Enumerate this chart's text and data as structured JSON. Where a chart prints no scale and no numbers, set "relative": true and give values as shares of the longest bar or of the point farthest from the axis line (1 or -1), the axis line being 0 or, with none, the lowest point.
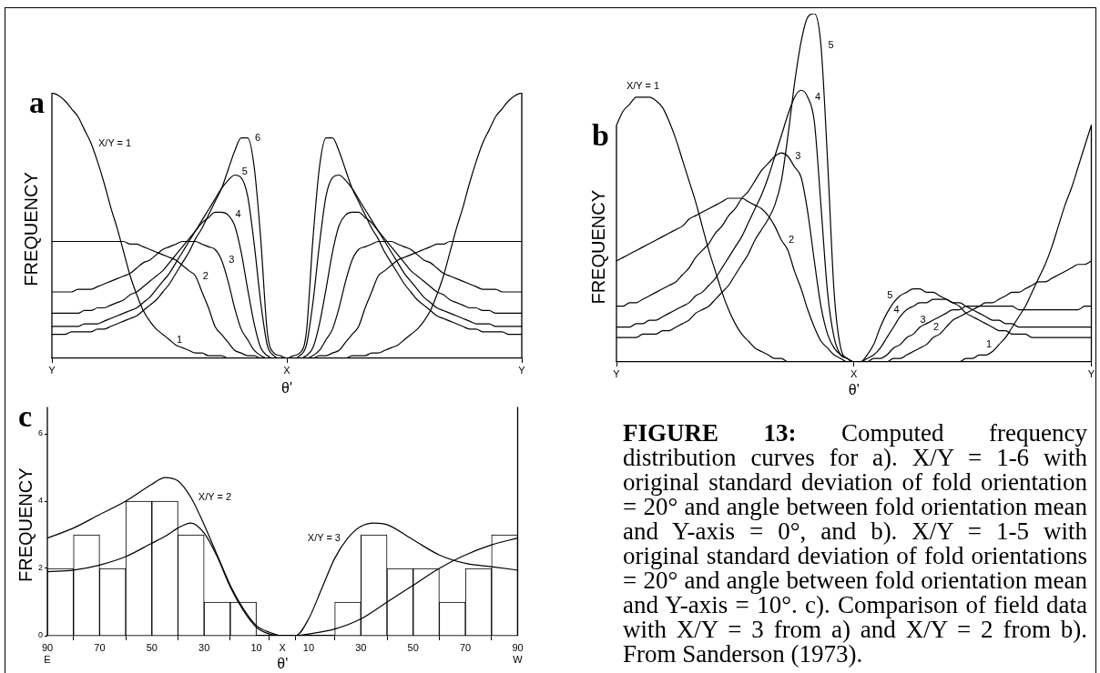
{
  "chart_data": [
    {
      "type": "line",
      "title": "a",
      "xlabel": "θ'",
      "ylabel": "FREQUENCY",
      "relative": true,
      "categories": [
        "Y",
        null,
        null,
        null,
        null,
        null,
        null,
        null,
        null,
        null,
        null,
        null,
        null,
        null,
        null,
        null,
        null,
        null,
        null,
        null,
        null,
        null,
        null,
        null,
        null,
        null,
        null,
        null,
        null,
        null,
        null,
        null,
        null,
        null,
        null,
        null,
        "X",
        null,
        null,
        null,
        null,
        null,
        null,
        null,
        null,
        null,
        null,
        null,
        null,
        null,
        null,
        null,
        null,
        null,
        null,
        null,
        null,
        null,
        null,
        null,
        null,
        null,
        null,
        null,
        null,
        null,
        null,
        null,
        null,
        null,
        null,
        null,
        "Y"
      ],
      "series": [
        {
          "name": "1",
          "color": "#000000",
          "values": [
            1,
            0.99,
            0.97,
            0.94,
            0.91,
            0.86,
            0.81,
            0.74,
            0.66,
            0.57,
            0.49,
            0.4,
            0.31,
            0.24,
            0.18,
            0.14,
            0.11,
            0.09,
            0.07,
            0.05,
            0.04,
            0.03,
            0.02,
            0.02,
            0.01,
            0.01,
            0.01,
            0,
            0,
            0,
            0,
            0,
            0,
            0,
            0,
            0,
            0,
            0,
            0,
            0,
            0,
            0,
            0,
            0,
            0,
            0,
            0.01,
            0.01,
            0.01,
            0.02,
            0.02,
            0.03,
            0.04,
            0.05,
            0.07,
            0.09,
            0.11,
            0.14,
            0.18,
            0.24,
            0.31,
            0.4,
            0.49,
            0.57,
            0.66,
            0.74,
            0.81,
            0.86,
            0.91,
            0.94,
            0.97,
            0.99,
            1
          ]
        },
        {
          "name": "2",
          "color": "#000000",
          "values": [
            0.44,
            0.44,
            0.44,
            0.44,
            0.44,
            0.44,
            0.44,
            0.44,
            0.44,
            0.44,
            0.44,
            0.44,
            0.43,
            0.43,
            0.42,
            0.41,
            0.4,
            0.39,
            0.38,
            0.37,
            0.35,
            0.33,
            0.31,
            0.25,
            0.19,
            0.12,
            0.09,
            0.06,
            0.03,
            0.02,
            0.01,
            0.01,
            0,
            0,
            0,
            0,
            0,
            0,
            0,
            0,
            0,
            0.01,
            0.01,
            0.02,
            0.03,
            0.06,
            0.09,
            0.12,
            0.19,
            0.25,
            0.31,
            0.33,
            0.35,
            0.37,
            0.38,
            0.39,
            0.4,
            0.41,
            0.42,
            0.43,
            0.43,
            0.44,
            0.44,
            0.44,
            0.44,
            0.44,
            0.44,
            0.44,
            0.44,
            0.44,
            0.44,
            0.44,
            0.44
          ]
        },
        {
          "name": "3",
          "color": "#000000",
          "values": [
            0.25,
            0.25,
            0.25,
            0.25,
            0.26,
            0.26,
            0.26,
            0.27,
            0.28,
            0.29,
            0.3,
            0.31,
            0.32,
            0.34,
            0.36,
            0.37,
            0.39,
            0.41,
            0.42,
            0.43,
            0.44,
            0.44,
            0.44,
            0.43,
            0.42,
            0.41,
            0.37,
            0.29,
            0.19,
            0.11,
            0.07,
            0.03,
            0.01,
            0,
            0,
            0,
            0,
            0,
            0,
            0,
            0.01,
            0.03,
            0.07,
            0.11,
            0.19,
            0.29,
            0.37,
            0.41,
            0.42,
            0.43,
            0.44,
            0.44,
            0.44,
            0.43,
            0.42,
            0.41,
            0.39,
            0.37,
            0.36,
            0.34,
            0.32,
            0.31,
            0.3,
            0.29,
            0.28,
            0.27,
            0.26,
            0.26,
            0.26,
            0.25,
            0.25,
            0.25,
            0.25
          ]
        },
        {
          "name": "4",
          "color": "#000000",
          "values": [
            0.17,
            0.17,
            0.17,
            0.17,
            0.17,
            0.18,
            0.18,
            0.19,
            0.19,
            0.2,
            0.21,
            0.22,
            0.24,
            0.25,
            0.27,
            0.29,
            0.31,
            0.33,
            0.36,
            0.39,
            0.42,
            0.45,
            0.48,
            0.51,
            0.53,
            0.55,
            0.55,
            0.54,
            0.5,
            0.4,
            0.26,
            0.13,
            0.04,
            0.01,
            0,
            0,
            0,
            0,
            0,
            0.01,
            0.04,
            0.13,
            0.26,
            0.4,
            0.5,
            0.54,
            0.55,
            0.55,
            0.53,
            0.51,
            0.48,
            0.45,
            0.42,
            0.39,
            0.36,
            0.33,
            0.31,
            0.29,
            0.27,
            0.25,
            0.24,
            0.22,
            0.21,
            0.2,
            0.19,
            0.19,
            0.18,
            0.18,
            0.17,
            0.17,
            0.17,
            0.17,
            0.17
          ]
        },
        {
          "name": "5",
          "color": "#000000",
          "values": [
            0.12,
            0.12,
            0.12,
            0.12,
            0.12,
            0.13,
            0.13,
            0.13,
            0.14,
            0.15,
            0.16,
            0.17,
            0.18,
            0.19,
            0.21,
            0.23,
            0.26,
            0.29,
            0.32,
            0.36,
            0.4,
            0.44,
            0.48,
            0.52,
            0.56,
            0.6,
            0.64,
            0.67,
            0.69,
            0.68,
            0.61,
            0.43,
            0.21,
            0.05,
            0.01,
            0,
            0,
            0,
            0.01,
            0.05,
            0.21,
            0.43,
            0.61,
            0.68,
            0.69,
            0.67,
            0.64,
            0.6,
            0.56,
            0.52,
            0.48,
            0.44,
            0.4,
            0.36,
            0.32,
            0.29,
            0.26,
            0.23,
            0.21,
            0.19,
            0.18,
            0.17,
            0.16,
            0.15,
            0.14,
            0.13,
            0.13,
            0.13,
            0.12,
            0.12,
            0.12,
            0.12,
            0.12
          ]
        },
        {
          "name": "6",
          "color": "#000000",
          "values": [
            0.09,
            0.09,
            0.09,
            0.1,
            0.1,
            0.1,
            0.1,
            0.11,
            0.11,
            0.12,
            0.13,
            0.14,
            0.15,
            0.16,
            0.18,
            0.2,
            0.22,
            0.25,
            0.28,
            0.32,
            0.36,
            0.4,
            0.45,
            0.49,
            0.54,
            0.59,
            0.64,
            0.71,
            0.78,
            0.83,
            0.83,
            0.72,
            0.45,
            0.1,
            0.02,
            0.01,
            0,
            0.01,
            0.02,
            0.1,
            0.45,
            0.72,
            0.83,
            0.83,
            0.78,
            0.71,
            0.64,
            0.59,
            0.54,
            0.49,
            0.45,
            0.4,
            0.36,
            0.32,
            0.28,
            0.25,
            0.22,
            0.2,
            0.18,
            0.16,
            0.15,
            0.14,
            0.13,
            0.12,
            0.11,
            0.11,
            0.1,
            0.1,
            0.1,
            0.1,
            0.09,
            0.09,
            0.09
          ]
        }
      ],
      "annotations": [
        "X/Y = 1"
      ]
    },
    {
      "type": "line",
      "title": "b",
      "xlabel": "θ'",
      "ylabel": "FREQUENCY",
      "relative": true,
      "categories": [
        "Y",
        null,
        null,
        null,
        null,
        null,
        null,
        null,
        null,
        null,
        null,
        null,
        null,
        null,
        null,
        null,
        null,
        null,
        null,
        null,
        null,
        null,
        null,
        null,
        null,
        null,
        null,
        null,
        null,
        null,
        null,
        null,
        null,
        null,
        null,
        null,
        "X",
        null,
        null,
        null,
        null,
        null,
        null,
        null,
        null,
        null,
        null,
        null,
        null,
        null,
        null,
        null,
        null,
        null,
        null,
        null,
        null,
        null,
        null,
        null,
        null,
        null,
        null,
        null,
        null,
        null,
        null,
        null,
        null,
        null,
        null,
        null,
        "Y"
      ],
      "series": [
        {
          "name": "1",
          "color": "#000000",
          "values": [
            0.68,
            0.72,
            0.74,
            0.76,
            0.76,
            0.76,
            0.75,
            0.73,
            0.69,
            0.64,
            0.58,
            0.52,
            0.46,
            0.39,
            0.32,
            0.26,
            0.2,
            0.15,
            0.11,
            0.08,
            0.06,
            0.04,
            0.03,
            0.02,
            0.01,
            0.01,
            0,
            0,
            0,
            0,
            0,
            0,
            0,
            0,
            0,
            0,
            0,
            0,
            0,
            0,
            0,
            0,
            0,
            0,
            0,
            0,
            0,
            0,
            0,
            0,
            0,
            0,
            0,
            0.01,
            0.01,
            0.02,
            0.02,
            0.03,
            0.05,
            0.07,
            0.1,
            0.13,
            0.16,
            0.2,
            0.24,
            0.28,
            0.33,
            0.39,
            0.45,
            0.5,
            0.56,
            0.62,
            0.68
          ]
        },
        {
          "name": "2",
          "color": "#000000",
          "values": [
            0.29,
            0.3,
            0.31,
            0.32,
            0.33,
            0.34,
            0.35,
            0.36,
            0.37,
            0.38,
            0.39,
            0.41,
            0.42,
            0.43,
            0.44,
            0.45,
            0.46,
            0.47,
            0.47,
            0.47,
            0.46,
            0.45,
            0.44,
            0.42,
            0.39,
            0.35,
            0.32,
            0.26,
            0.21,
            0.15,
            0.1,
            0.06,
            0.04,
            0.02,
            0.01,
            0,
            0,
            0,
            0,
            0,
            0,
            0,
            0.01,
            0.01,
            0.02,
            0.03,
            0.04,
            0.05,
            0.07,
            0.08,
            0.1,
            0.12,
            0.13,
            0.14,
            0.15,
            0.16,
            0.17,
            0.17,
            0.18,
            0.19,
            0.2,
            0.2,
            0.21,
            0.22,
            0.23,
            0.23,
            0.24,
            0.25,
            0.26,
            0.27,
            0.28,
            0.28,
            0.29
          ]
        },
        {
          "name": "3",
          "color": "#000000",
          "values": [
            0.16,
            0.16,
            0.17,
            0.17,
            0.18,
            0.19,
            0.2,
            0.21,
            0.22,
            0.23,
            0.25,
            0.27,
            0.3,
            0.32,
            0.34,
            0.37,
            0.39,
            0.42,
            0.44,
            0.47,
            0.49,
            0.52,
            0.55,
            0.57,
            0.59,
            0.6,
            0.59,
            0.56,
            0.53,
            0.43,
            0.29,
            0.16,
            0.08,
            0.04,
            0.02,
            0.01,
            0,
            0,
            0,
            0.01,
            0.01,
            0.02,
            0.04,
            0.05,
            0.07,
            0.08,
            0.1,
            0.11,
            0.12,
            0.13,
            0.14,
            0.15,
            0.15,
            0.16,
            0.16,
            0.16,
            0.16,
            0.16,
            0.16,
            0.16,
            0.16,
            0.15,
            0.15,
            0.15,
            0.15,
            0.15,
            0.15,
            0.15,
            0.15,
            0.15,
            0.15,
            0.16,
            0.16
          ]
        },
        {
          "name": "4",
          "color": "#000000",
          "values": [
            0.1,
            0.1,
            0.1,
            0.11,
            0.11,
            0.12,
            0.12,
            0.13,
            0.14,
            0.15,
            0.16,
            0.17,
            0.19,
            0.2,
            0.22,
            0.24,
            0.27,
            0.3,
            0.33,
            0.36,
            0.4,
            0.44,
            0.48,
            0.53,
            0.59,
            0.65,
            0.71,
            0.76,
            0.78,
            0.76,
            0.69,
            0.45,
            0.2,
            0.07,
            0.02,
            0.01,
            0,
            0,
            0.01,
            0.02,
            0.04,
            0.07,
            0.1,
            0.13,
            0.15,
            0.16,
            0.17,
            0.17,
            0.18,
            0.18,
            0.18,
            0.17,
            0.17,
            0.16,
            0.15,
            0.14,
            0.13,
            0.12,
            0.12,
            0.11,
            0.11,
            0.1,
            0.1,
            0.1,
            0.1,
            0.1,
            0.1,
            0.1,
            0.1,
            0.1,
            0.1,
            0.1,
            0.1
          ]
        },
        {
          "name": "5",
          "color": "#000000",
          "values": [
            0.07,
            0.07,
            0.07,
            0.07,
            0.08,
            0.08,
            0.08,
            0.09,
            0.09,
            0.1,
            0.11,
            0.12,
            0.14,
            0.15,
            0.16,
            0.18,
            0.2,
            0.22,
            0.25,
            0.28,
            0.31,
            0.35,
            0.38,
            0.41,
            0.45,
            0.52,
            0.65,
            0.8,
            0.92,
            0.99,
            1,
            0.91,
            0.58,
            0.2,
            0.04,
            0.01,
            0,
            0,
            0.02,
            0.05,
            0.1,
            0.14,
            0.17,
            0.19,
            0.2,
            0.21,
            0.21,
            0.2,
            0.2,
            0.19,
            0.18,
            0.17,
            0.16,
            0.14,
            0.13,
            0.12,
            0.11,
            0.1,
            0.09,
            0.09,
            0.08,
            0.08,
            0.08,
            0.07,
            0.07,
            0.07,
            0.07,
            0.07,
            0.07,
            0.07,
            0.07,
            0.07,
            0.07
          ]
        }
      ],
      "annotations": [
        "X/Y = 1"
      ]
    },
    {
      "type": "histogram",
      "title": "c",
      "xlabel": "θ'",
      "ylabel": "FREQUENCY",
      "xlim": [
        -90,
        90
      ],
      "ylim": [
        0,
        6.8
      ],
      "xticks": [
        {
          "value": -90,
          "label": "90\nE"
        },
        {
          "value": -70,
          "label": "70"
        },
        {
          "value": -50,
          "label": "50"
        },
        {
          "value": -30,
          "label": "30"
        },
        {
          "value": -10,
          "label": "10"
        },
        {
          "value": 0,
          "label": "X"
        },
        {
          "value": 10,
          "label": "10"
        },
        {
          "value": 30,
          "label": "30"
        },
        {
          "value": 50,
          "label": "50"
        },
        {
          "value": 70,
          "label": "70"
        },
        {
          "value": 90,
          "label": "90\nW"
        }
      ],
      "yticks": [
        0,
        2,
        4,
        6
      ],
      "bins": [
        -90,
        -80,
        -70,
        -60,
        -50,
        -40,
        -30,
        -20,
        -10,
        0,
        10,
        20,
        30,
        40,
        50,
        60,
        70,
        80,
        90
      ],
      "values": [
        2,
        3,
        2,
        4,
        4,
        3,
        1,
        1,
        0,
        0,
        0,
        1,
        3,
        2,
        2,
        1,
        2,
        3
      ],
      "color": "#ffffff",
      "series": [
        {
          "type": "line",
          "name": "X/Y = 2",
          "color": "#000000",
          "x": [
            -90,
            -80,
            -70,
            -60,
            -50,
            -45,
            -40,
            -35,
            -30,
            -25,
            -20,
            -15,
            -10,
            -5,
            0,
            5,
            10,
            20,
            30,
            40,
            50,
            60,
            70,
            80,
            90
          ],
          "values": [
            2.9,
            3.2,
            3.6,
            4,
            4.5,
            4.7,
            4.6,
            4.1,
            3.3,
            2.4,
            1.5,
            0.8,
            0.3,
            0.1,
            0,
            0,
            0.05,
            0.2,
            0.5,
            1,
            1.5,
            2,
            2.4,
            2.7,
            2.9
          ]
        },
        {
          "type": "line",
          "name": "X/Y = 3",
          "color": "#000000",
          "x": [
            -90,
            -80,
            -70,
            -60,
            -50,
            -45,
            -40,
            -35,
            -30,
            -25,
            -20,
            -15,
            -10,
            -5,
            0,
            5,
            10,
            15,
            20,
            25,
            30,
            35,
            40,
            50,
            60,
            70,
            80,
            90
          ],
          "values": [
            1.9,
            1.95,
            2.1,
            2.35,
            2.75,
            2.95,
            3.2,
            3.35,
            3.05,
            2.35,
            1.45,
            0.75,
            0.25,
            0.05,
            0,
            0,
            0.5,
            1.4,
            2.3,
            2.9,
            3.25,
            3.35,
            3.3,
            2.85,
            2.4,
            2.15,
            2.05,
            1.95
          ]
        }
      ]
    },
    {
      "type": "other",
      "annotations": [
        "FIGURE 13: Computed frequency distribution curves for a). X/Y = 1-6 with original standard deviation of fold orientation = 20° and angle between fold orientation mean and Y-axis = 0°, and b). X/Y = 1-5 with original standard deviation of fold orientations = 20° and angle between fold orientation mean and Y-axis = 10°. c). Comparison of field data with X/Y = 3 from a) and X/Y = 2 from b). From Sanderson (1973)."
      ]
    }
  ]
}
